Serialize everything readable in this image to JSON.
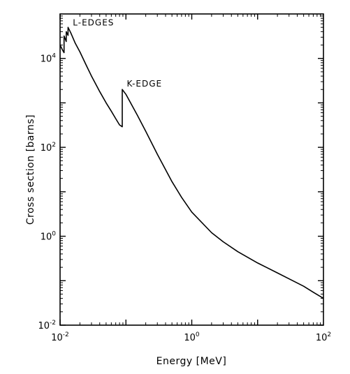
{
  "chart_data": {
    "type": "line",
    "title": "",
    "xlabel": "Energy [MeV]",
    "ylabel": "Cross section [barns]",
    "xscale": "log",
    "yscale": "log",
    "xlim": [
      0.01,
      100
    ],
    "ylim": [
      0.01,
      100000
    ],
    "grid": false,
    "x_ticks": [
      {
        "value": 0.01,
        "base": "10",
        "exp": "-2"
      },
      {
        "value": 1,
        "base": "10",
        "exp": "0"
      },
      {
        "value": 100,
        "base": "10",
        "exp": "2"
      }
    ],
    "y_ticks": [
      {
        "value": 0.01,
        "base": "10",
        "exp": "-2"
      },
      {
        "value": 1,
        "base": "10",
        "exp": "0"
      },
      {
        "value": 100,
        "base": "10",
        "exp": "2"
      },
      {
        "value": 10000,
        "base": "10",
        "exp": "4"
      }
    ],
    "series": [
      {
        "x": [
          0.01,
          0.011,
          0.0115,
          0.0115,
          0.0124,
          0.0124,
          0.0132,
          0.0132,
          0.0145,
          0.017,
          0.02,
          0.025,
          0.03,
          0.04,
          0.05,
          0.06,
          0.07,
          0.08,
          0.088,
          0.088,
          0.1,
          0.15,
          0.2,
          0.3,
          0.5,
          0.7,
          1,
          2,
          3,
          5,
          10,
          20,
          30,
          50,
          70,
          100
        ],
        "y": [
          20000,
          15000,
          13500,
          32000,
          24000,
          40000,
          33000,
          50000,
          38000,
          22000,
          14000,
          7000,
          4000,
          1800,
          1000,
          650,
          440,
          320,
          290,
          2000,
          1550,
          520,
          230,
          70,
          17,
          7.5,
          3.5,
          1.2,
          0.75,
          0.45,
          0.25,
          0.15,
          0.11,
          0.075,
          0.055,
          0.04
        ]
      }
    ],
    "annotations": [
      {
        "text": "L-EDGES",
        "x": 0.0135,
        "y": 48000
      },
      {
        "text": "K-EDGE",
        "x": 0.089,
        "y": 2000
      }
    ]
  }
}
